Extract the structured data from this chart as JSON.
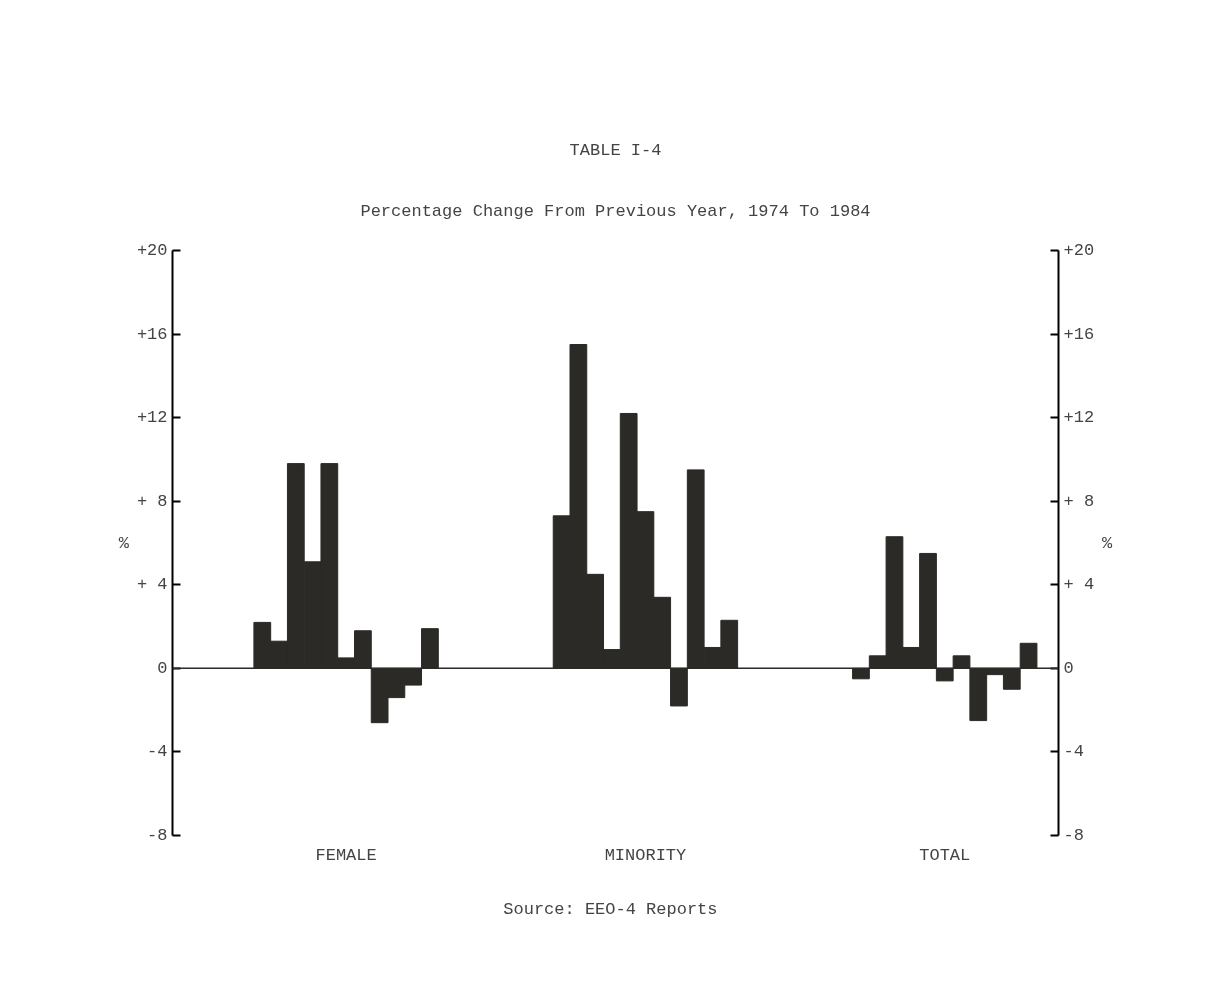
{
  "chart_data": {
    "type": "bar",
    "title": "TABLE I-4",
    "subtitle": "Percentage Change From Previous Year, 1974 To 1984",
    "categories": [
      "FEMALE",
      "MINORITY",
      "TOTAL"
    ],
    "series": [
      {
        "color": "#2b2a26",
        "values": [
          2.2,
          7.3,
          -0.5
        ]
      },
      {
        "color": "#2b2a26",
        "values": [
          1.3,
          15.5,
          0.6
        ]
      },
      {
        "color": "#2b2a26",
        "values": [
          9.8,
          4.5,
          6.3
        ]
      },
      {
        "color": "#2b2a26",
        "values": [
          5.1,
          0.9,
          1.0
        ]
      },
      {
        "color": "#2b2a26",
        "values": [
          9.8,
          12.2,
          5.5
        ]
      },
      {
        "color": "#2b2a26",
        "values": [
          0.5,
          7.5,
          -0.6
        ]
      },
      {
        "color": "#2b2a26",
        "values": [
          1.8,
          3.4,
          0.6
        ]
      },
      {
        "color": "#2b2a26",
        "values": [
          -2.6,
          -1.8,
          -2.5
        ]
      },
      {
        "color": "#2b2a26",
        "values": [
          -1.4,
          9.5,
          -0.3
        ]
      },
      {
        "color": "#2b2a26",
        "values": [
          -0.8,
          1.0,
          -1.0
        ]
      },
      {
        "color": "#2b2a26",
        "values": [
          1.9,
          2.3,
          1.2
        ]
      }
    ],
    "ylabel": "%",
    "y2label": "%",
    "ylim": [
      -8,
      20
    ],
    "yticks": [
      {
        "value": 20,
        "label": "+20"
      },
      {
        "value": 16,
        "label": "+16"
      },
      {
        "value": 12,
        "label": "+12"
      },
      {
        "value": 8,
        "label": "+ 8"
      },
      {
        "value": 4,
        "label": "+ 4"
      },
      0,
      -4,
      -8
    ],
    "y2lim": [
      -8,
      20
    ],
    "y2ticks": [
      {
        "value": 20,
        "label": "+20"
      },
      {
        "value": 16,
        "label": "+16"
      },
      {
        "value": 12,
        "label": "+12"
      },
      {
        "value": 8,
        "label": "+ 8"
      },
      {
        "value": 4,
        "label": "+ 4"
      },
      0,
      -4,
      -8
    ],
    "ref_lines": [
      {
        "axis": "y",
        "value": 0
      }
    ],
    "grid": false,
    "annotations": [
      "Source:  EEO-4 Reports"
    ]
  }
}
